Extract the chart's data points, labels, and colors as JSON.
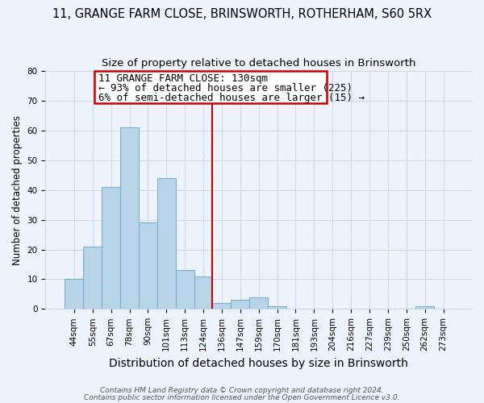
{
  "title_line1": "11, GRANGE FARM CLOSE, BRINSWORTH, ROTHERHAM, S60 5RX",
  "title_line2": "Size of property relative to detached houses in Brinsworth",
  "xlabel": "Distribution of detached houses by size in Brinsworth",
  "ylabel": "Number of detached properties",
  "bar_labels": [
    "44sqm",
    "55sqm",
    "67sqm",
    "78sqm",
    "90sqm",
    "101sqm",
    "113sqm",
    "124sqm",
    "136sqm",
    "147sqm",
    "159sqm",
    "170sqm",
    "181sqm",
    "193sqm",
    "204sqm",
    "216sqm",
    "227sqm",
    "239sqm",
    "250sqm",
    "262sqm",
    "273sqm"
  ],
  "bar_heights": [
    10,
    21,
    41,
    61,
    29,
    44,
    13,
    11,
    2,
    3,
    4,
    1,
    0,
    0,
    0,
    0,
    0,
    0,
    0,
    1,
    0
  ],
  "bar_color": "#b8d4e8",
  "bar_edge_color": "#7aafc8",
  "vline_x_index": 7.5,
  "vline_color": "#cc0000",
  "annotation_line1": "11 GRANGE FARM CLOSE: 130sqm",
  "annotation_line2": "← 93% of detached houses are smaller (225)",
  "annotation_line3": "6% of semi-detached houses are larger (15) →",
  "annotation_fontsize": 9,
  "ylim": [
    0,
    80
  ],
  "yticks": [
    0,
    10,
    20,
    30,
    40,
    50,
    60,
    70,
    80
  ],
  "grid_color": "#d0d8e8",
  "bg_color": "#eef2fa",
  "footer_line1": "Contains HM Land Registry data © Crown copyright and database right 2024.",
  "footer_line2": "Contains public sector information licensed under the Open Government Licence v3.0.",
  "title_fontsize": 10.5,
  "subtitle_fontsize": 9.5,
  "xlabel_fontsize": 10,
  "ylabel_fontsize": 8.5,
  "tick_fontsize": 7.5
}
